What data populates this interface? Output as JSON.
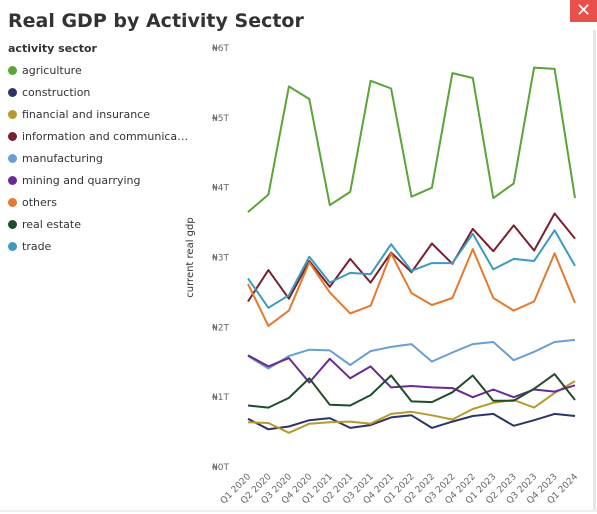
{
  "title": "Real GDP by Activity Sector",
  "close_label": "✕",
  "chart_data": {
    "type": "line",
    "title": "Real GDP by Activity Sector",
    "legend_title": "activity sector",
    "legend_position": "left",
    "xlabel": "",
    "ylabel": "current real gdp",
    "ylim": [
      0,
      6000000000000
    ],
    "y_ticks": [
      {
        "value": 0,
        "label": "₦0T"
      },
      {
        "value": 1000000000000,
        "label": "₦1T"
      },
      {
        "value": 2000000000000,
        "label": "₦2T"
      },
      {
        "value": 3000000000000,
        "label": "₦3T"
      },
      {
        "value": 4000000000000,
        "label": "₦4T"
      },
      {
        "value": 5000000000000,
        "label": "₦5T"
      },
      {
        "value": 6000000000000,
        "label": "₦6T"
      }
    ],
    "categories": [
      "Q1 2020",
      "Q2 2020",
      "Q3 2020",
      "Q4 2020",
      "Q1 2021",
      "Q2 2021",
      "Q3 2021",
      "Q4 2021",
      "Q1 2022",
      "Q2 2022",
      "Q3 2022",
      "Q4 2022",
      "Q1 2023",
      "Q2 2023",
      "Q3 2023",
      "Q4 2023",
      "Q1 2024"
    ],
    "series": [
      {
        "name": "agriculture",
        "display": "agriculture",
        "color": "#5ba33b",
        "values": [
          3650000000000,
          3900000000000,
          5450000000000,
          5270000000000,
          3750000000000,
          3940000000000,
          5530000000000,
          5420000000000,
          3870000000000,
          4000000000000,
          5640000000000,
          5570000000000,
          3850000000000,
          4060000000000,
          5720000000000,
          5700000000000,
          3850000000000
        ]
      },
      {
        "name": "construction",
        "display": "construction",
        "color": "#2d3567",
        "values": [
          690000000000,
          540000000000,
          580000000000,
          670000000000,
          700000000000,
          560000000000,
          600000000000,
          710000000000,
          740000000000,
          560000000000,
          650000000000,
          730000000000,
          760000000000,
          590000000000,
          670000000000,
          760000000000,
          730000000000
        ]
      },
      {
        "name": "financial and insurance",
        "display": "financial and insurance",
        "color": "#b69a2e",
        "values": [
          640000000000,
          630000000000,
          490000000000,
          620000000000,
          640000000000,
          650000000000,
          620000000000,
          760000000000,
          790000000000,
          740000000000,
          680000000000,
          830000000000,
          920000000000,
          960000000000,
          850000000000,
          1060000000000,
          1230000000000
        ]
      },
      {
        "name": "information and communication",
        "display": "information and communica…",
        "color": "#7a1f2e",
        "values": [
          2370000000000,
          2820000000000,
          2410000000000,
          2950000000000,
          2580000000000,
          2980000000000,
          2640000000000,
          3070000000000,
          2790000000000,
          3200000000000,
          2910000000000,
          3410000000000,
          3090000000000,
          3460000000000,
          3100000000000,
          3630000000000,
          3270000000000
        ]
      },
      {
        "name": "manufacturing",
        "display": "manufacturing",
        "color": "#6a9fd4",
        "values": [
          1590000000000,
          1410000000000,
          1590000000000,
          1680000000000,
          1670000000000,
          1460000000000,
          1660000000000,
          1720000000000,
          1760000000000,
          1510000000000,
          1640000000000,
          1760000000000,
          1790000000000,
          1530000000000,
          1650000000000,
          1790000000000,
          1820000000000
        ]
      },
      {
        "name": "mining and quarrying",
        "display": "mining and quarrying",
        "color": "#6a2a8f",
        "values": [
          1600000000000,
          1440000000000,
          1560000000000,
          1210000000000,
          1550000000000,
          1270000000000,
          1440000000000,
          1140000000000,
          1160000000000,
          1140000000000,
          1130000000000,
          1000000000000,
          1110000000000,
          1000000000000,
          1110000000000,
          1080000000000,
          1170000000000
        ]
      },
      {
        "name": "others",
        "display": "others",
        "color": "#e27a2f",
        "values": [
          2620000000000,
          2020000000000,
          2240000000000,
          2930000000000,
          2500000000000,
          2200000000000,
          2310000000000,
          3060000000000,
          2490000000000,
          2320000000000,
          2420000000000,
          3120000000000,
          2420000000000,
          2240000000000,
          2370000000000,
          3060000000000,
          2350000000000
        ]
      },
      {
        "name": "real estate",
        "display": "real estate",
        "color": "#1f4d2a",
        "values": [
          880000000000,
          850000000000,
          990000000000,
          1270000000000,
          890000000000,
          880000000000,
          1030000000000,
          1310000000000,
          940000000000,
          930000000000,
          1070000000000,
          1310000000000,
          950000000000,
          950000000000,
          1120000000000,
          1330000000000,
          960000000000
        ]
      },
      {
        "name": "trade",
        "display": "trade",
        "color": "#3a9bbf",
        "values": [
          2700000000000,
          2280000000000,
          2460000000000,
          3010000000000,
          2640000000000,
          2780000000000,
          2760000000000,
          3190000000000,
          2810000000000,
          2920000000000,
          2920000000000,
          3340000000000,
          2830000000000,
          2980000000000,
          2950000000000,
          3390000000000,
          2880000000000
        ]
      }
    ]
  }
}
